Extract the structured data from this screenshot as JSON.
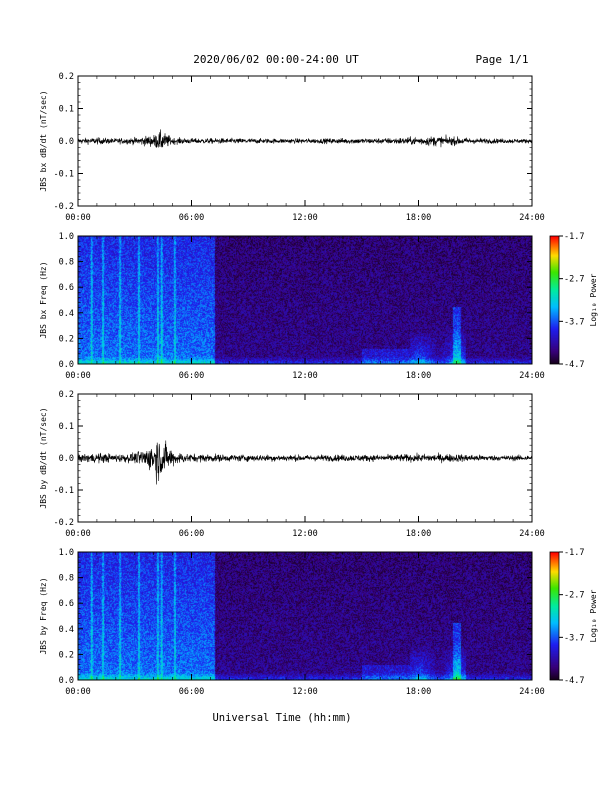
{
  "header": {
    "title": "2020/06/02  00:00-24:00 UT",
    "page": "Page 1/1"
  },
  "chart_data": [
    {
      "type": "line",
      "ylabel": "JBS bx dB/dt (nT/sec)",
      "ylim": [
        -0.2,
        0.2
      ],
      "yticks": [
        "0.2",
        "0.1",
        "0.0",
        "-0.1",
        "-0.2"
      ],
      "xticks": [
        "00:00",
        "06:00",
        "12:00",
        "18:00",
        "24:00"
      ],
      "xlim_hours": [
        0,
        24
      ],
      "series": [
        {
          "x_hours": [
            0,
            1,
            2,
            3,
            4,
            4.4,
            5,
            6,
            7,
            8,
            10,
            12,
            14,
            16,
            17,
            18,
            19,
            20,
            21,
            22,
            24
          ],
          "amplitude": [
            0.008,
            0.01,
            0.008,
            0.01,
            0.018,
            0.03,
            0.01,
            0.008,
            0.008,
            0.008,
            0.007,
            0.007,
            0.008,
            0.008,
            0.01,
            0.012,
            0.015,
            0.012,
            0.008,
            0.007,
            0.006
          ]
        }
      ]
    },
    {
      "type": "heatmap",
      "ylabel": "JBS bx Freq (Hz)",
      "ylim": [
        0.0,
        1.0
      ],
      "yticks": [
        "1.0",
        "0.8",
        "0.6",
        "0.4",
        "0.2",
        "0.0"
      ],
      "xticks": [
        "00:00",
        "06:00",
        "12:00",
        "18:00",
        "24:00"
      ],
      "xlim_hours": [
        0,
        24
      ],
      "colorbar": {
        "label": "Log₁₀ Power",
        "ticks": [
          "-1.7",
          "-2.7",
          "-3.7",
          "-4.7"
        ],
        "range": [
          -4.7,
          -1.7
        ]
      },
      "features": {
        "active_until_hours": 7.2,
        "bright_bands_hours": [
          0.7,
          1.3,
          2.2,
          3.2,
          4.2,
          4.4,
          5.1
        ],
        "emission_hours": [
          17.5,
          20.5
        ]
      }
    },
    {
      "type": "line",
      "ylabel": "JBS by dB/dt (nT/sec)",
      "ylim": [
        -0.2,
        0.2
      ],
      "yticks": [
        "0.2",
        "0.1",
        "0.0",
        "-0.1",
        "-0.2"
      ],
      "xticks": [
        "00:00",
        "06:00",
        "12:00",
        "18:00",
        "24:00"
      ],
      "xlim_hours": [
        0,
        24
      ],
      "series": [
        {
          "x_hours": [
            0,
            1,
            2,
            3,
            3.8,
            4.2,
            4.5,
            5,
            5.5,
            6,
            7,
            8,
            10,
            12,
            14,
            16,
            18,
            20,
            21,
            22,
            24
          ],
          "amplitude": [
            0.012,
            0.015,
            0.012,
            0.015,
            0.035,
            0.07,
            0.05,
            0.025,
            0.015,
            0.012,
            0.012,
            0.01,
            0.01,
            0.009,
            0.01,
            0.01,
            0.012,
            0.012,
            0.01,
            0.008,
            0.008
          ]
        }
      ]
    },
    {
      "type": "heatmap",
      "ylabel": "JBS by Freq (Hz)",
      "ylim": [
        0.0,
        1.0
      ],
      "yticks": [
        "1.0",
        "0.8",
        "0.6",
        "0.4",
        "0.2",
        "0.0"
      ],
      "xticks": [
        "00:00",
        "06:00",
        "12:00",
        "18:00",
        "24:00"
      ],
      "xlim_hours": [
        0,
        24
      ],
      "colorbar": {
        "label": "Log₁₀ Power",
        "ticks": [
          "-1.7",
          "-2.7",
          "-3.7",
          "-4.7"
        ],
        "range": [
          -4.7,
          -1.7
        ]
      },
      "features": {
        "active_until_hours": 7.2,
        "bright_bands_hours": [
          0.7,
          1.3,
          2.2,
          3.2,
          4.2,
          4.4,
          5.1
        ],
        "emission_hours": [
          17.5,
          20.5
        ]
      }
    }
  ],
  "xlabel": "Universal Time (hh:mm)"
}
